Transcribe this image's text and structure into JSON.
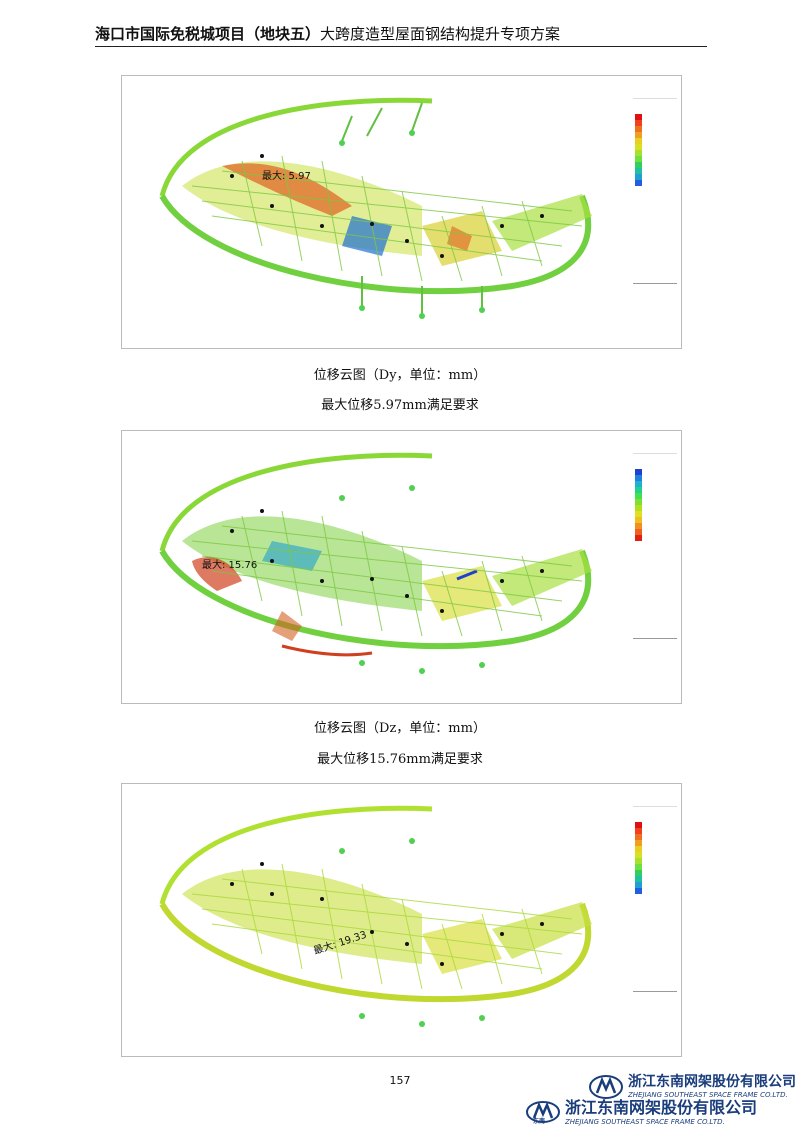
{
  "header": {
    "title_bold": "海口市国际免税城项目（地块五）",
    "title_rest": "大跨度造型屋面钢结构提升专项方案"
  },
  "figures": [
    {
      "annotation": "最大: 5.97",
      "caption": "位移云图（Dy，单位：mm）",
      "note": "最大位移5.97mm满足要求",
      "legend_colors": [
        "#e01010",
        "#f04020",
        "#f07020",
        "#f0a020",
        "#e8d020",
        "#d8e020",
        "#a8e030",
        "#70e040",
        "#30d060",
        "#20c0a0",
        "#20a0d0",
        "#2060e0"
      ]
    },
    {
      "annotation": "最大: 15.76",
      "caption": "位移云图（Dz，单位：mm）",
      "note": "最大位移15.76mm满足要求",
      "legend_colors": [
        "#2040d0",
        "#2080e0",
        "#20b0d0",
        "#20d090",
        "#40e050",
        "#80e030",
        "#b0e020",
        "#e0e020",
        "#f0c020",
        "#f09020",
        "#f06020",
        "#e02010"
      ]
    },
    {
      "annotation": "最大: 19.33",
      "caption": "",
      "note": "",
      "legend_colors": [
        "#e01010",
        "#f04020",
        "#f07020",
        "#f0a020",
        "#e8d020",
        "#d8e020",
        "#a8e030",
        "#70e040",
        "#30d060",
        "#20c0a0",
        "#20a0d0",
        "#2060e0"
      ]
    }
  ],
  "page_number": "157",
  "company": {
    "name_cn": "浙江东南网架股份有限公司",
    "name_en": "ZHEJIANG SOUTHEAST SPACE FRAME CO.LTD.",
    "mark_text": "东南"
  }
}
